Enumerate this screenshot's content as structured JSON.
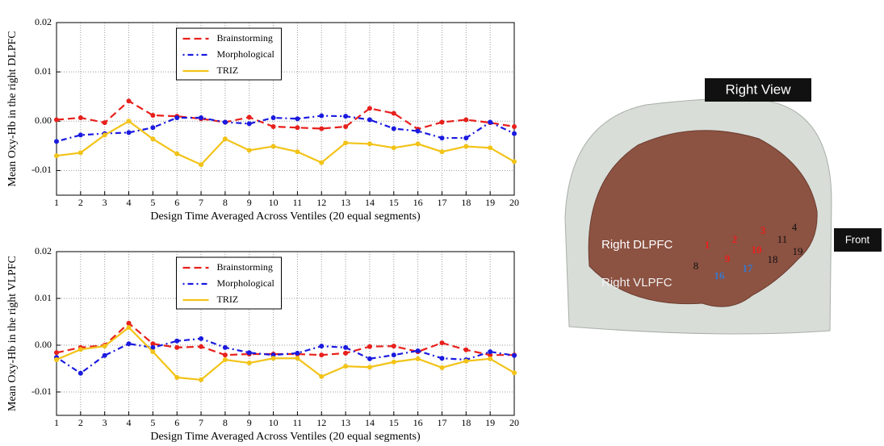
{
  "chart_data": [
    {
      "type": "line",
      "y_label": "Mean Oxy-Hb in the right DLPFC",
      "x_label": "Design Time Averaged Across Ventiles (20 equal segments)",
      "x": [
        1,
        2,
        3,
        4,
        5,
        6,
        7,
        8,
        9,
        10,
        11,
        12,
        13,
        14,
        15,
        16,
        17,
        18,
        19,
        20
      ],
      "xlim": [
        1,
        20
      ],
      "xticks": [
        1,
        2,
        3,
        4,
        5,
        6,
        7,
        8,
        9,
        10,
        11,
        12,
        13,
        14,
        15,
        16,
        17,
        18,
        19,
        20
      ],
      "ylim": [
        -0.015,
        0.02
      ],
      "yticks": [
        -0.01,
        {
          "value": 0,
          "label": "0.00"
        },
        0.01,
        0.02
      ],
      "grid": true,
      "legend": "upper center",
      "series": [
        {
          "name": "Brainstorming",
          "color": "#e8201c",
          "style": "dashed",
          "values": [
            0.0003,
            0.0007,
            -0.0003,
            0.0041,
            0.0012,
            0.001,
            0.0005,
            -0.0002,
            0.0008,
            -0.0011,
            -0.0013,
            -0.0015,
            -0.0011,
            0.0026,
            0.0016,
            -0.0016,
            -0.0002,
            0.0003,
            -0.0003,
            -0.0011
          ]
        },
        {
          "name": "Morphological",
          "color": "#1a1ae0",
          "style": "dashdot",
          "values": [
            -0.0041,
            -0.0028,
            -0.0025,
            -0.0023,
            -0.0013,
            0.0007,
            0.0007,
            -0.0002,
            -0.0005,
            0.0007,
            0.0005,
            0.0011,
            0.001,
            0.0003,
            -0.0015,
            -0.002,
            -0.0034,
            -0.0034,
            -0.0002,
            -0.0025
          ]
        },
        {
          "name": "TRIZ",
          "color": "#f2c318",
          "style": "solid",
          "values": [
            -0.007,
            -0.0064,
            -0.0028,
            0.0,
            -0.0036,
            -0.0066,
            -0.0088,
            -0.0036,
            -0.0059,
            -0.0051,
            -0.0062,
            -0.0084,
            -0.0044,
            -0.0046,
            -0.0054,
            -0.0046,
            -0.0062,
            -0.0051,
            -0.0054,
            -0.0082
          ]
        }
      ]
    },
    {
      "type": "line",
      "y_label": "Mean Oxy-Hb in the right VLPFC",
      "x_label": "Design Time Averaged Across Ventiles (20 equal segments)",
      "x": [
        1,
        2,
        3,
        4,
        5,
        6,
        7,
        8,
        9,
        10,
        11,
        12,
        13,
        14,
        15,
        16,
        17,
        18,
        19,
        20
      ],
      "xlim": [
        1,
        20
      ],
      "xticks": [
        1,
        2,
        3,
        4,
        5,
        6,
        7,
        8,
        9,
        10,
        11,
        12,
        13,
        14,
        15,
        16,
        17,
        18,
        19,
        20
      ],
      "ylim": [
        -0.015,
        0.02
      ],
      "yticks": [
        -0.01,
        {
          "value": 0,
          "label": "0.00"
        },
        0.01,
        0.02
      ],
      "grid": true,
      "legend": "upper center",
      "series": [
        {
          "name": "Brainstorming",
          "color": "#e8201c",
          "style": "dashed",
          "values": [
            -0.0016,
            -0.0005,
            0.0,
            0.0047,
            0.0003,
            -0.0005,
            -0.0003,
            -0.0021,
            -0.0019,
            -0.0019,
            -0.0019,
            -0.0021,
            -0.0017,
            -0.0003,
            -0.0002,
            -0.0014,
            0.0005,
            -0.001,
            -0.0021,
            -0.0021
          ]
        },
        {
          "name": "Morphological",
          "color": "#1a1ae0",
          "style": "dashdot",
          "values": [
            -0.0026,
            -0.006,
            -0.0022,
            0.0003,
            -0.0005,
            0.0009,
            0.0014,
            -0.0005,
            -0.0016,
            -0.0021,
            -0.0017,
            -0.0002,
            -0.0005,
            -0.0029,
            -0.0021,
            -0.0012,
            -0.0028,
            -0.0031,
            -0.0014,
            -0.0022
          ]
        },
        {
          "name": "TRIZ",
          "color": "#f2c318",
          "style": "solid",
          "values": [
            -0.0031,
            -0.0009,
            -0.0002,
            0.0038,
            -0.0014,
            -0.0069,
            -0.0074,
            -0.0031,
            -0.0038,
            -0.0028,
            -0.0028,
            -0.0067,
            -0.0045,
            -0.0047,
            -0.0036,
            -0.0029,
            -0.0048,
            -0.0034,
            -0.0029,
            -0.0059
          ]
        }
      ]
    }
  ],
  "brain": {
    "view_label": "Right View",
    "front_label": "Front",
    "regions": [
      "Right DLPFC",
      "Right VLPFC"
    ],
    "channels": [
      {
        "label": "1",
        "color": "#e8201c"
      },
      {
        "label": "2",
        "color": "#e8201c"
      },
      {
        "label": "3",
        "color": "#e8201c"
      },
      {
        "label": "4",
        "color": "#111111"
      },
      {
        "label": "11",
        "color": "#111111"
      },
      {
        "label": "10",
        "color": "#e8201c"
      },
      {
        "label": "19",
        "color": "#111111"
      },
      {
        "label": "18",
        "color": "#111111"
      },
      {
        "label": "9",
        "color": "#e8201c"
      },
      {
        "label": "8",
        "color": "#111111"
      },
      {
        "label": "16",
        "color": "#3a78c8"
      },
      {
        "label": "17",
        "color": "#3a78c8"
      }
    ]
  }
}
